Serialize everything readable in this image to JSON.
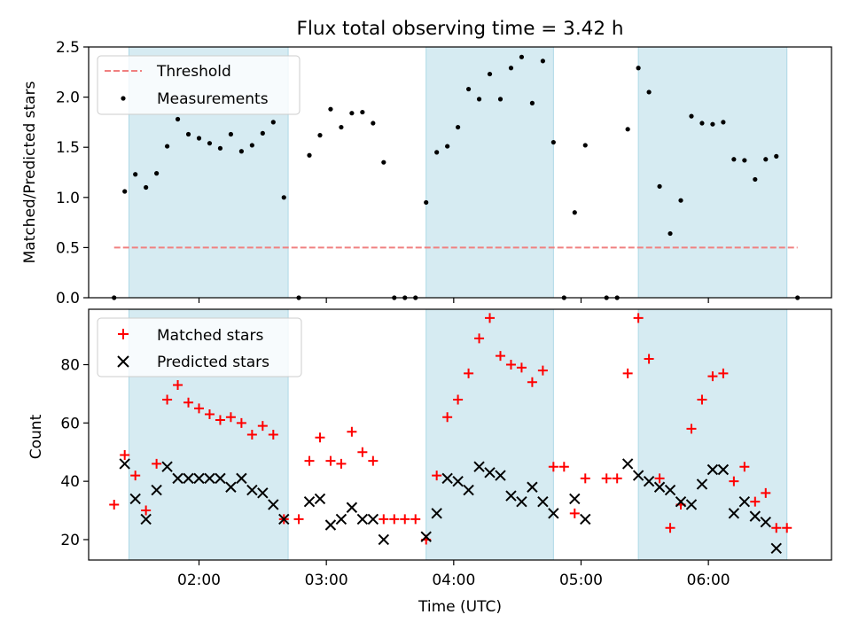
{
  "title": "Flux total observing time = 3.42 h",
  "xlabel": "Time (UTC)",
  "chart_data": [
    {
      "type": "scatter",
      "panel": "top",
      "ylabel": "Matched/Predicted stars",
      "ylim": [
        0,
        2.5
      ],
      "yticks": [
        "0.0",
        "0.5",
        "1.0",
        "1.5",
        "2.0",
        "2.5"
      ],
      "xticks": [
        "02:00",
        "03:00",
        "04:00",
        "05:00",
        "06:00"
      ],
      "xlim": [
        "01:08",
        "06:58"
      ],
      "threshold": {
        "name": "Threshold",
        "value": 0.5,
        "x_start": "01:20",
        "x_end": "06:42",
        "color": "#f08080"
      },
      "shaded_intervals": [
        [
          "01:27",
          "02:42"
        ],
        [
          "03:47",
          "04:47"
        ],
        [
          "05:27",
          "06:37"
        ]
      ],
      "series": [
        {
          "name": "Measurements",
          "color": "#000000",
          "points": [
            [
              "01:20",
              0.0
            ],
            [
              "01:25",
              1.06
            ],
            [
              "01:30",
              1.23
            ],
            [
              "01:35",
              1.1
            ],
            [
              "01:40",
              1.24
            ],
            [
              "01:45",
              1.51
            ],
            [
              "01:50",
              1.78
            ],
            [
              "01:55",
              1.63
            ],
            [
              "02:00",
              1.59
            ],
            [
              "02:05",
              1.54
            ],
            [
              "02:10",
              1.49
            ],
            [
              "02:15",
              1.63
            ],
            [
              "02:20",
              1.46
            ],
            [
              "02:25",
              1.52
            ],
            [
              "02:30",
              1.64
            ],
            [
              "02:35",
              1.75
            ],
            [
              "02:40",
              1.0
            ],
            [
              "02:47",
              0.0
            ],
            [
              "02:52",
              1.42
            ],
            [
              "02:57",
              1.62
            ],
            [
              "03:02",
              1.88
            ],
            [
              "03:07",
              1.7
            ],
            [
              "03:12",
              1.84
            ],
            [
              "03:17",
              1.85
            ],
            [
              "03:22",
              1.74
            ],
            [
              "03:27",
              1.35
            ],
            [
              "03:32",
              0.0
            ],
            [
              "03:37",
              0.0
            ],
            [
              "03:42",
              0.0
            ],
            [
              "03:47",
              0.95
            ],
            [
              "03:52",
              1.45
            ],
            [
              "03:57",
              1.51
            ],
            [
              "04:02",
              1.7
            ],
            [
              "04:07",
              2.08
            ],
            [
              "04:12",
              1.98
            ],
            [
              "04:17",
              2.23
            ],
            [
              "04:22",
              1.98
            ],
            [
              "04:27",
              2.29
            ],
            [
              "04:32",
              2.4
            ],
            [
              "04:37",
              1.94
            ],
            [
              "04:42",
              2.36
            ],
            [
              "04:47",
              1.55
            ],
            [
              "04:52",
              0.0
            ],
            [
              "04:57",
              0.85
            ],
            [
              "05:02",
              1.52
            ],
            [
              "05:12",
              0.0
            ],
            [
              "05:17",
              0.0
            ],
            [
              "05:22",
              1.68
            ],
            [
              "05:27",
              2.29
            ],
            [
              "05:32",
              2.05
            ],
            [
              "05:37",
              1.11
            ],
            [
              "05:42",
              0.64
            ],
            [
              "05:47",
              0.97
            ],
            [
              "05:52",
              1.81
            ],
            [
              "05:57",
              1.74
            ],
            [
              "06:02",
              1.73
            ],
            [
              "06:07",
              1.75
            ],
            [
              "06:12",
              1.38
            ],
            [
              "06:17",
              1.37
            ],
            [
              "06:22",
              1.18
            ],
            [
              "06:27",
              1.38
            ],
            [
              "06:32",
              1.41
            ],
            [
              "06:42",
              0.0
            ]
          ]
        }
      ],
      "legend": {
        "position": "upper-left",
        "entries": [
          "Threshold",
          "Measurements"
        ]
      }
    },
    {
      "type": "scatter",
      "panel": "bottom",
      "ylabel": "Count",
      "ylim": [
        13,
        99
      ],
      "yticks": [
        "20",
        "40",
        "60",
        "80"
      ],
      "xticks": [
        "02:00",
        "03:00",
        "04:00",
        "05:00",
        "06:00"
      ],
      "xlim": [
        "01:08",
        "06:58"
      ],
      "shaded_intervals": [
        [
          "01:27",
          "02:42"
        ],
        [
          "03:47",
          "04:47"
        ],
        [
          "05:27",
          "06:37"
        ]
      ],
      "series": [
        {
          "name": "Matched stars",
          "marker": "+",
          "color": "#ff0000",
          "points": [
            [
              "01:20",
              32
            ],
            [
              "01:25",
              49
            ],
            [
              "01:30",
              42
            ],
            [
              "01:35",
              30
            ],
            [
              "01:40",
              46
            ],
            [
              "01:45",
              68
            ],
            [
              "01:50",
              73
            ],
            [
              "01:55",
              67
            ],
            [
              "02:00",
              65
            ],
            [
              "02:05",
              63
            ],
            [
              "02:10",
              61
            ],
            [
              "02:15",
              62
            ],
            [
              "02:20",
              60
            ],
            [
              "02:25",
              56
            ],
            [
              "02:30",
              59
            ],
            [
              "02:35",
              56
            ],
            [
              "02:40",
              27
            ],
            [
              "02:47",
              27
            ],
            [
              "02:52",
              47
            ],
            [
              "02:57",
              55
            ],
            [
              "03:02",
              47
            ],
            [
              "03:07",
              46
            ],
            [
              "03:12",
              57
            ],
            [
              "03:17",
              50
            ],
            [
              "03:22",
              47
            ],
            [
              "03:27",
              27
            ],
            [
              "03:32",
              27
            ],
            [
              "03:37",
              27
            ],
            [
              "03:42",
              27
            ],
            [
              "03:47",
              20
            ],
            [
              "03:52",
              42
            ],
            [
              "03:57",
              62
            ],
            [
              "04:02",
              68
            ],
            [
              "04:07",
              77
            ],
            [
              "04:12",
              89
            ],
            [
              "04:17",
              96
            ],
            [
              "04:22",
              83
            ],
            [
              "04:27",
              80
            ],
            [
              "04:32",
              79
            ],
            [
              "04:37",
              74
            ],
            [
              "04:42",
              78
            ],
            [
              "04:47",
              45
            ],
            [
              "04:52",
              45
            ],
            [
              "04:57",
              29
            ],
            [
              "05:02",
              41
            ],
            [
              "05:12",
              41
            ],
            [
              "05:17",
              41
            ],
            [
              "05:22",
              77
            ],
            [
              "05:27",
              96
            ],
            [
              "05:32",
              82
            ],
            [
              "05:37",
              41
            ],
            [
              "05:42",
              24
            ],
            [
              "05:47",
              32
            ],
            [
              "05:52",
              58
            ],
            [
              "05:57",
              68
            ],
            [
              "06:02",
              76
            ],
            [
              "06:07",
              77
            ],
            [
              "06:12",
              40
            ],
            [
              "06:17",
              45
            ],
            [
              "06:22",
              33
            ],
            [
              "06:27",
              36
            ],
            [
              "06:32",
              24
            ],
            [
              "06:37",
              24
            ]
          ]
        },
        {
          "name": "Predicted stars",
          "marker": "x",
          "color": "#000000",
          "points": [
            [
              "01:25",
              46
            ],
            [
              "01:30",
              34
            ],
            [
              "01:35",
              27
            ],
            [
              "01:40",
              37
            ],
            [
              "01:45",
              45
            ],
            [
              "01:50",
              41
            ],
            [
              "01:55",
              41
            ],
            [
              "02:00",
              41
            ],
            [
              "02:05",
              41
            ],
            [
              "02:10",
              41
            ],
            [
              "02:15",
              38
            ],
            [
              "02:20",
              41
            ],
            [
              "02:25",
              37
            ],
            [
              "02:30",
              36
            ],
            [
              "02:35",
              32
            ],
            [
              "02:40",
              27
            ],
            [
              "02:52",
              33
            ],
            [
              "02:57",
              34
            ],
            [
              "03:02",
              25
            ],
            [
              "03:07",
              27
            ],
            [
              "03:12",
              31
            ],
            [
              "03:17",
              27
            ],
            [
              "03:22",
              27
            ],
            [
              "03:27",
              20
            ],
            [
              "03:47",
              21
            ],
            [
              "03:52",
              29
            ],
            [
              "03:57",
              41
            ],
            [
              "04:02",
              40
            ],
            [
              "04:07",
              37
            ],
            [
              "04:12",
              45
            ],
            [
              "04:17",
              43
            ],
            [
              "04:22",
              42
            ],
            [
              "04:27",
              35
            ],
            [
              "04:32",
              33
            ],
            [
              "04:37",
              38
            ],
            [
              "04:42",
              33
            ],
            [
              "04:47",
              29
            ],
            [
              "04:57",
              34
            ],
            [
              "05:02",
              27
            ],
            [
              "05:22",
              46
            ],
            [
              "05:27",
              42
            ],
            [
              "05:32",
              40
            ],
            [
              "05:37",
              38
            ],
            [
              "05:42",
              37
            ],
            [
              "05:47",
              33
            ],
            [
              "05:52",
              32
            ],
            [
              "05:57",
              39
            ],
            [
              "06:02",
              44
            ],
            [
              "06:07",
              44
            ],
            [
              "06:12",
              29
            ],
            [
              "06:17",
              33
            ],
            [
              "06:22",
              28
            ],
            [
              "06:27",
              26
            ],
            [
              "06:32",
              17
            ]
          ]
        }
      ],
      "legend": {
        "position": "upper-left",
        "entries": [
          "Matched stars",
          "Predicted stars"
        ]
      }
    }
  ],
  "colors": {
    "shade": "#add8e6",
    "threshold": "#f08080",
    "matched": "#ff0000",
    "predicted": "#000000",
    "measurement": "#000000"
  }
}
